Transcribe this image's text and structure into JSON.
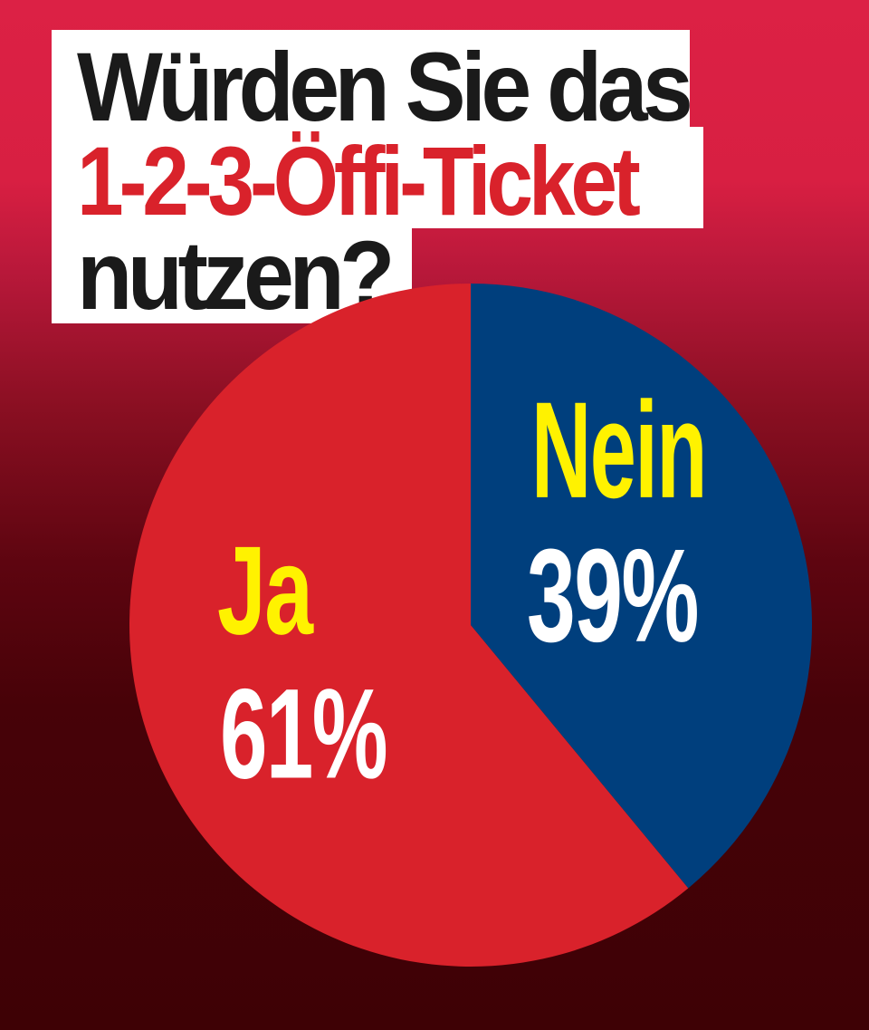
{
  "title": {
    "line1": "Würden Sie das",
    "line2": "1-2-3-Öffi-Ticket",
    "line3": "nutzen?"
  },
  "colors": {
    "ja": "#d9222b",
    "nein": "#003f7d",
    "label_category": "#fff200",
    "label_value": "#ffffff",
    "title_dark": "#1a1a1a",
    "title_red": "#d9222b"
  },
  "slices": [
    {
      "category": "Ja",
      "value_label": "61%"
    },
    {
      "category": "Nein",
      "value_label": "39%"
    }
  ],
  "chart_data": {
    "type": "pie",
    "title": "Würden Sie das 1-2-3-Öffi-Ticket nutzen?",
    "categories": [
      "Ja",
      "Nein"
    ],
    "values": [
      61,
      39
    ],
    "unit": "%",
    "colors": [
      "#d9222b",
      "#003f7d"
    ],
    "legend": "none (labels inside slices)"
  }
}
